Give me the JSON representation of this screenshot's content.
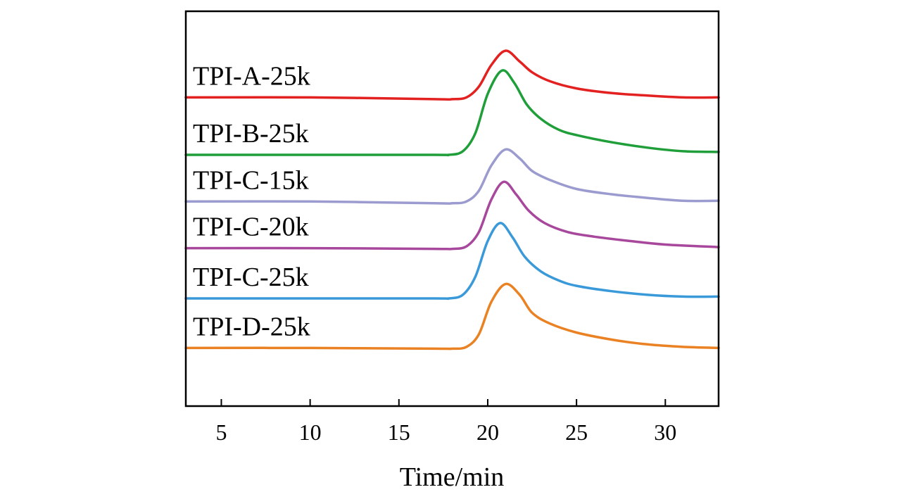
{
  "chart_data": {
    "type": "line",
    "title": "",
    "xlabel": "Time/min",
    "ylabel": "",
    "xlim": [
      3,
      33
    ],
    "ylim": [
      0,
      11
    ],
    "xticks": [
      5,
      10,
      15,
      20,
      25,
      30
    ],
    "grid": false,
    "legend": "inline labels on left",
    "series": [
      {
        "name": "TPI-A-25k",
        "color": "#e32121",
        "x": [
          3,
          10,
          17,
          18,
          18.8,
          19.5,
          20.2,
          21,
          21.8,
          22.5,
          23.5,
          25,
          27,
          29,
          31,
          33
        ],
        "y": [
          8.6,
          8.6,
          8.55,
          8.55,
          8.6,
          8.9,
          9.5,
          9.9,
          9.6,
          9.3,
          9.05,
          8.85,
          8.72,
          8.65,
          8.6,
          8.6
        ]
      },
      {
        "name": "TPI-B-25k",
        "color": "#1f9e3a",
        "x": [
          3,
          10,
          17,
          17.8,
          18.6,
          19.3,
          20,
          20.8,
          21.5,
          22.2,
          23,
          24,
          25,
          27,
          29,
          31,
          33
        ],
        "y": [
          7.0,
          7.0,
          7.0,
          7.0,
          7.1,
          7.6,
          8.7,
          9.35,
          9.0,
          8.4,
          8.0,
          7.7,
          7.55,
          7.35,
          7.2,
          7.1,
          7.08
        ]
      },
      {
        "name": "TPI-C-15k",
        "color": "#9b9bcf",
        "x": [
          3,
          10,
          17,
          18,
          18.8,
          19.5,
          20.2,
          21,
          21.8,
          22.5,
          23.5,
          25,
          27,
          29,
          31,
          33
        ],
        "y": [
          5.7,
          5.7,
          5.65,
          5.65,
          5.7,
          6.0,
          6.7,
          7.15,
          6.9,
          6.55,
          6.3,
          6.05,
          5.9,
          5.8,
          5.72,
          5.72
        ]
      },
      {
        "name": "TPI-C-20k",
        "color": "#a8489c",
        "x": [
          3,
          10,
          17,
          18,
          18.8,
          19.5,
          20.2,
          20.9,
          21.6,
          22.3,
          23.2,
          24.5,
          26,
          28,
          30,
          33
        ],
        "y": [
          4.4,
          4.4,
          4.38,
          4.38,
          4.45,
          4.85,
          5.75,
          6.25,
          5.9,
          5.45,
          5.1,
          4.85,
          4.72,
          4.6,
          4.5,
          4.43
        ]
      },
      {
        "name": "TPI-C-25k",
        "color": "#3a9ad9",
        "x": [
          3,
          10,
          17,
          17.8,
          18.6,
          19.3,
          20,
          20.7,
          21.4,
          22.1,
          23,
          24,
          25,
          27,
          29,
          31,
          33
        ],
        "y": [
          3.0,
          3.0,
          3.0,
          3.0,
          3.1,
          3.6,
          4.6,
          5.1,
          4.7,
          4.15,
          3.75,
          3.5,
          3.35,
          3.2,
          3.1,
          3.05,
          3.05
        ]
      },
      {
        "name": "TPI-D-25k",
        "color": "#ea8224",
        "x": [
          3,
          10,
          17,
          18,
          18.8,
          19.5,
          20.2,
          21,
          21.8,
          22.5,
          23.5,
          25,
          27,
          29,
          31,
          33
        ],
        "y": [
          1.62,
          1.62,
          1.6,
          1.6,
          1.65,
          2.0,
          2.9,
          3.4,
          3.1,
          2.6,
          2.3,
          2.05,
          1.85,
          1.72,
          1.65,
          1.62
        ]
      }
    ]
  }
}
